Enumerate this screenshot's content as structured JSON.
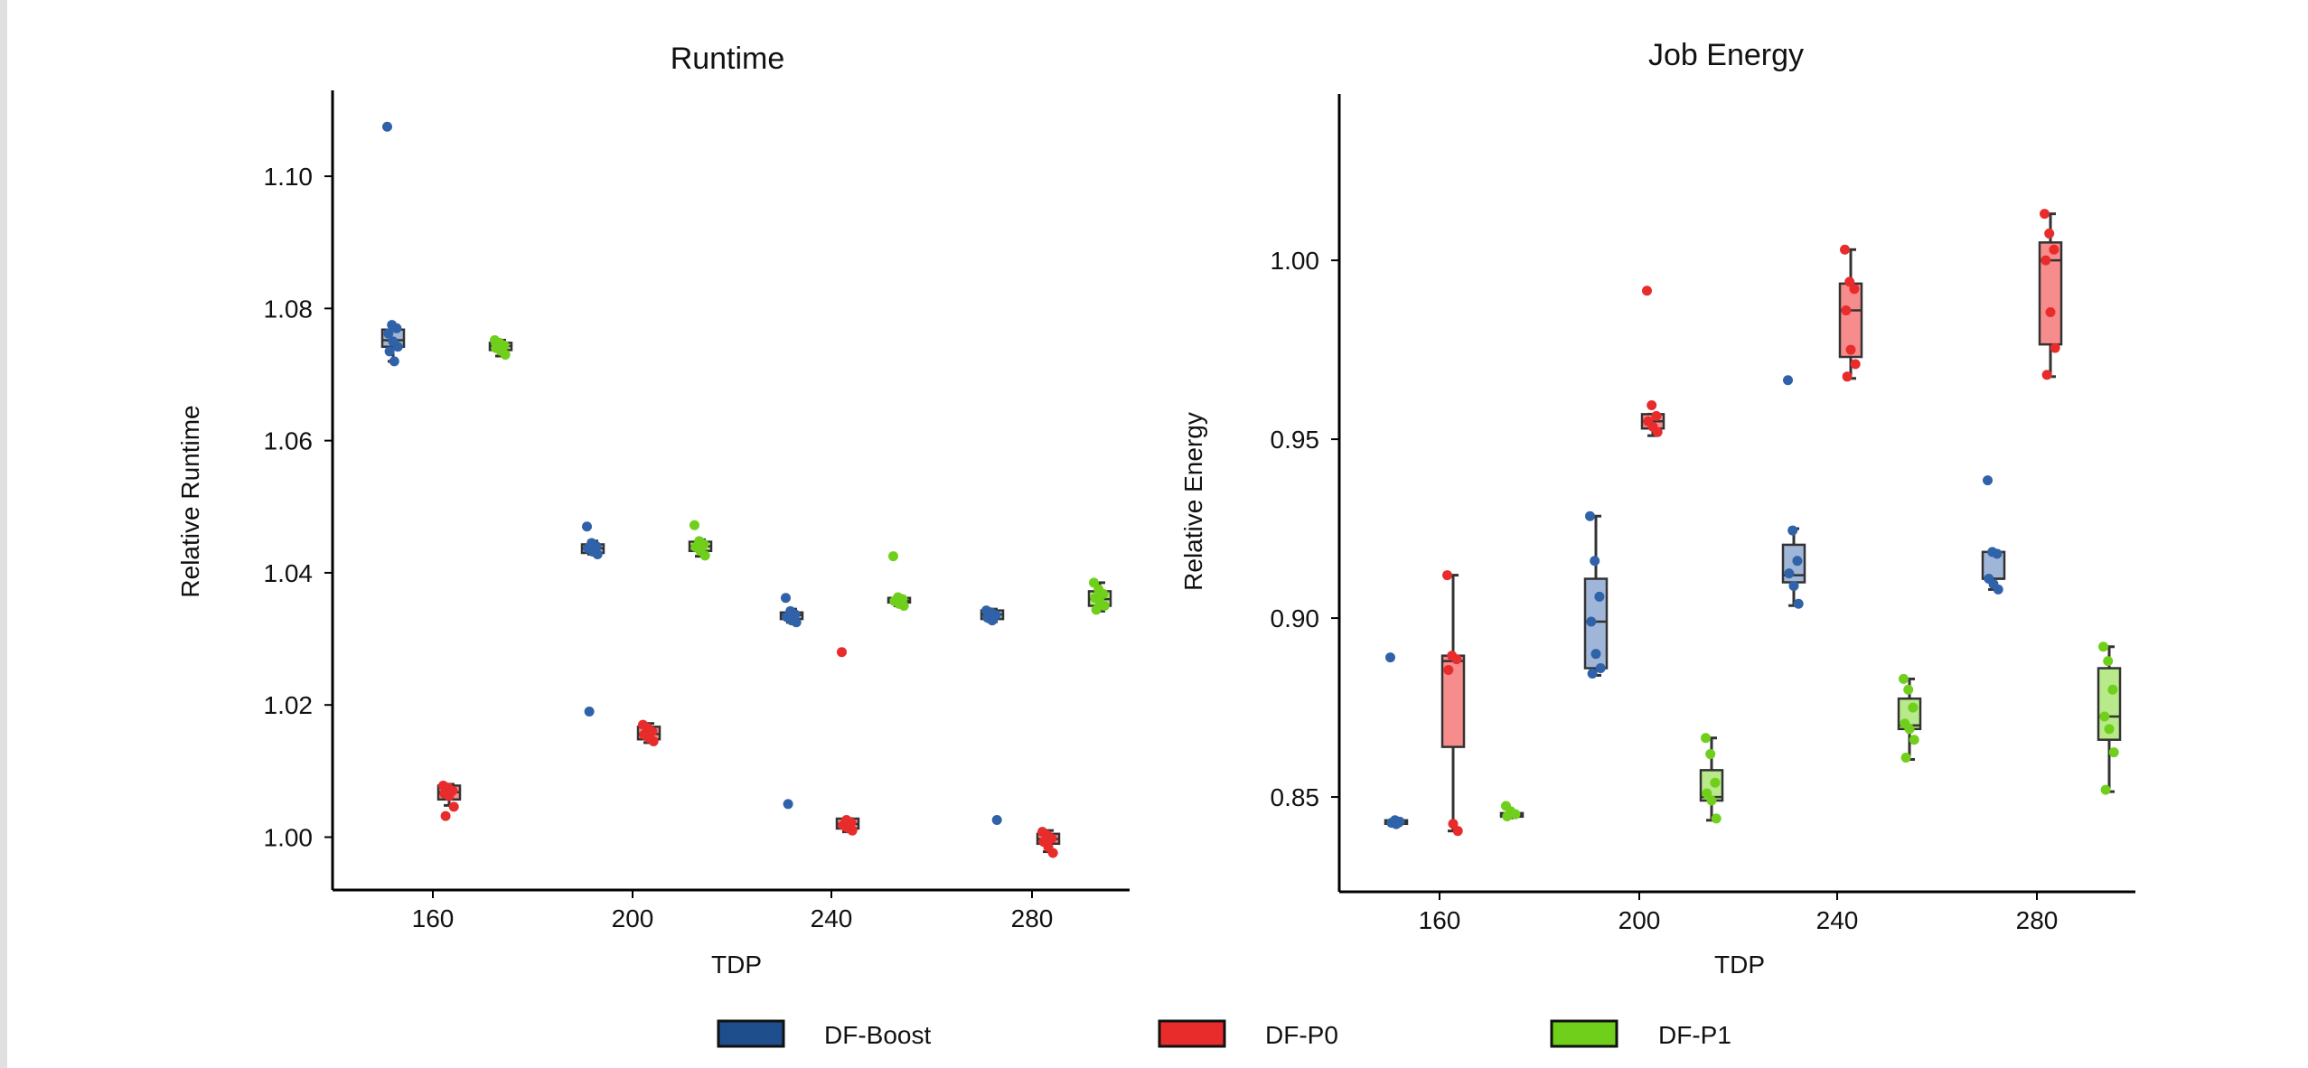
{
  "colors": {
    "DF-Boost": {
      "point": "#2f62a8",
      "fill": "#9fb6d8",
      "legend": "#1f4e8c"
    },
    "DF-P0": {
      "point": "#e82c2c",
      "fill": "#f78c8c",
      "legend": "#e82c2c"
    },
    "DF-P1": {
      "point": "#6fcf1a",
      "fill": "#b8e98a",
      "legend": "#6fcf1a"
    }
  },
  "legend": {
    "items": [
      {
        "label": "DF-Boost",
        "series": "DF-Boost"
      },
      {
        "label": "DF-P0",
        "series": "DF-P0"
      },
      {
        "label": "DF-P1",
        "series": "DF-P1"
      }
    ]
  },
  "chart_data": [
    {
      "type": "box",
      "title": "Runtime",
      "xlabel": "TDP",
      "ylabel": "Relative Runtime",
      "categories": [
        "160",
        "200",
        "240",
        "280"
      ],
      "yticks": [
        "1.00",
        "1.02",
        "1.04",
        "1.06",
        "1.08",
        "1.10"
      ],
      "ylim": [
        0.992,
        1.113
      ],
      "grid": false,
      "legend_position": "bottom",
      "series": [
        {
          "name": "DF-Boost",
          "boxes": [
            {
              "category": "160",
              "q1": 1.0742,
              "median": 1.0752,
              "q3": 1.0768,
              "whisker_low": 1.072,
              "whisker_high": 1.0775,
              "points": [
                1.1075,
                1.0775,
                1.077,
                1.0762,
                1.075,
                1.0742,
                1.0735,
                1.072
              ]
            },
            {
              "category": "200",
              "q1": 1.043,
              "median": 1.0437,
              "q3": 1.0443,
              "whisker_low": 1.0428,
              "whisker_high": 1.0448,
              "points": [
                1.047,
                1.0445,
                1.044,
                1.0437,
                1.0432,
                1.0428,
                1.019
              ]
            },
            {
              "category": "240",
              "q1": 1.033,
              "median": 1.0336,
              "q3": 1.034,
              "whisker_low": 1.0325,
              "whisker_high": 1.0345,
              "points": [
                1.0362,
                1.0342,
                1.0337,
                1.0333,
                1.0328,
                1.0325,
                1.005
              ]
            },
            {
              "category": "280",
              "q1": 1.033,
              "median": 1.0337,
              "q3": 1.0343,
              "whisker_low": 1.0326,
              "whisker_high": 1.0345,
              "points": [
                1.0343,
                1.034,
                1.0336,
                1.0332,
                1.0328,
                1.0026
              ]
            }
          ]
        },
        {
          "name": "DF-P0",
          "boxes": [
            {
              "category": "160",
              "q1": 1.0057,
              "median": 1.0068,
              "q3": 1.0078,
              "whisker_low": 1.0048,
              "whisker_high": 1.008,
              "points": [
                1.0078,
                1.0075,
                1.007,
                1.0066,
                1.0062,
                1.0046,
                1.0032
              ]
            },
            {
              "category": "200",
              "q1": 1.0148,
              "median": 1.0156,
              "q3": 1.0167,
              "whisker_low": 1.0143,
              "whisker_high": 1.0172,
              "points": [
                1.017,
                1.0165,
                1.016,
                1.0155,
                1.015,
                1.0145
              ]
            },
            {
              "category": "240",
              "q1": 1.0013,
              "median": 1.002,
              "q3": 1.0028,
              "whisker_low": 1.0008,
              "whisker_high": 1.0028,
              "points": [
                1.028,
                1.0026,
                1.0022,
                1.0018,
                1.0014,
                1.001
              ]
            },
            {
              "category": "280",
              "q1": 0.999,
              "median": 0.9997,
              "q3": 1.0005,
              "whisker_low": 0.9978,
              "whisker_high": 1.001,
              "points": [
                1.0008,
                1.0003,
                0.9998,
                0.9993,
                0.9985,
                0.9976
              ]
            }
          ]
        },
        {
          "name": "DF-P1",
          "boxes": [
            {
              "category": "160",
              "q1": 1.0737,
              "median": 1.0743,
              "q3": 1.0748,
              "whisker_low": 1.0728,
              "whisker_high": 1.0752,
              "points": [
                1.0752,
                1.0748,
                1.0744,
                1.074,
                1.0736,
                1.073
              ]
            },
            {
              "category": "200",
              "q1": 1.0433,
              "median": 1.044,
              "q3": 1.0447,
              "whisker_low": 1.0425,
              "whisker_high": 1.045,
              "points": [
                1.0472,
                1.0448,
                1.0443,
                1.0439,
                1.0433,
                1.0426
              ]
            },
            {
              "category": "240",
              "q1": 1.0355,
              "median": 1.0358,
              "q3": 1.0362,
              "whisker_low": 1.035,
              "whisker_high": 1.0364,
              "points": [
                1.0425,
                1.0363,
                1.036,
                1.0357,
                1.0353,
                1.035
              ]
            },
            {
              "category": "280",
              "q1": 1.035,
              "median": 1.036,
              "q3": 1.0372,
              "whisker_low": 1.0342,
              "whisker_high": 1.0385,
              "points": [
                1.0385,
                1.0375,
                1.0368,
                1.0362,
                1.0356,
                1.035,
                1.0344
              ]
            }
          ]
        }
      ]
    },
    {
      "type": "box",
      "title": "Job Energy",
      "xlabel": "TDP",
      "ylabel": "Relative Energy",
      "categories": [
        "160",
        "200",
        "240",
        "280"
      ],
      "yticks": [
        "0.85",
        "0.90",
        "0.95",
        "1.00"
      ],
      "ylim": [
        0.8235,
        1.0465
      ],
      "grid": false,
      "legend_position": "bottom",
      "series": [
        {
          "name": "DF-Boost",
          "boxes": [
            {
              "category": "160",
              "q1": 0.8425,
              "median": 0.843,
              "q3": 0.8435,
              "whisker_low": 0.842,
              "whisker_high": 0.8437,
              "points": [
                0.889,
                0.8435,
                0.8431,
                0.8428,
                0.8424
              ]
            },
            {
              "category": "200",
              "q1": 0.886,
              "median": 0.899,
              "q3": 0.911,
              "whisker_low": 0.884,
              "whisker_high": 0.9285,
              "points": [
                0.9285,
                0.916,
                0.906,
                0.899,
                0.89,
                0.886,
                0.8845
              ]
            },
            {
              "category": "240",
              "q1": 0.91,
              "median": 0.912,
              "q3": 0.9205,
              "whisker_low": 0.9035,
              "whisker_high": 0.925,
              "points": [
                0.9665,
                0.9245,
                0.916,
                0.9125,
                0.909,
                0.904
              ]
            },
            {
              "category": "280",
              "q1": 0.911,
              "median": 0.911,
              "q3": 0.9185,
              "whisker_low": 0.908,
              "whisker_high": 0.9185,
              "points": [
                0.9385,
                0.9185,
                0.918,
                0.911,
                0.9095,
                0.908
              ]
            }
          ]
        },
        {
          "name": "DF-P0",
          "boxes": [
            {
              "category": "160",
              "q1": 0.864,
              "median": 0.888,
              "q3": 0.8895,
              "whisker_low": 0.8405,
              "whisker_high": 0.912,
              "points": [
                0.912,
                0.8895,
                0.8885,
                0.8855,
                0.8425,
                0.8405
              ]
            },
            {
              "category": "200",
              "q1": 0.953,
              "median": 0.955,
              "q3": 0.957,
              "whisker_low": 0.951,
              "whisker_high": 0.957,
              "points": [
                0.9915,
                0.9595,
                0.9565,
                0.955,
                0.9535,
                0.952
              ]
            },
            {
              "category": "240",
              "q1": 0.973,
              "median": 0.986,
              "q3": 0.9935,
              "whisker_low": 0.967,
              "whisker_high": 1.003,
              "points": [
                1.003,
                0.994,
                0.992,
                0.986,
                0.975,
                0.971,
                0.9675
              ]
            },
            {
              "category": "280",
              "q1": 0.9765,
              "median": 1.0,
              "q3": 1.005,
              "whisker_low": 0.9675,
              "whisker_high": 1.013,
              "points": [
                1.013,
                1.0075,
                1.003,
                1.0,
                0.9855,
                0.9755,
                0.968
              ]
            }
          ]
        },
        {
          "name": "DF-P1",
          "boxes": [
            {
              "category": "160",
              "q1": 0.8445,
              "median": 0.845,
              "q3": 0.8455,
              "whisker_low": 0.8442,
              "whisker_high": 0.846,
              "points": [
                0.8475,
                0.846,
                0.8452,
                0.8446
              ]
            },
            {
              "category": "200",
              "q1": 0.849,
              "median": 0.85,
              "q3": 0.8575,
              "whisker_low": 0.8435,
              "whisker_high": 0.8665,
              "points": [
                0.8665,
                0.862,
                0.854,
                0.851,
                0.849,
                0.844
              ]
            },
            {
              "category": "240",
              "q1": 0.869,
              "median": 0.87,
              "q3": 0.8775,
              "whisker_low": 0.8605,
              "whisker_high": 0.883,
              "points": [
                0.883,
                0.88,
                0.875,
                0.8705,
                0.869,
                0.866,
                0.861
              ]
            },
            {
              "category": "280",
              "q1": 0.866,
              "median": 0.8725,
              "q3": 0.886,
              "whisker_low": 0.8515,
              "whisker_high": 0.892,
              "points": [
                0.892,
                0.888,
                0.88,
                0.8725,
                0.869,
                0.8625,
                0.852
              ]
            }
          ]
        }
      ]
    }
  ]
}
